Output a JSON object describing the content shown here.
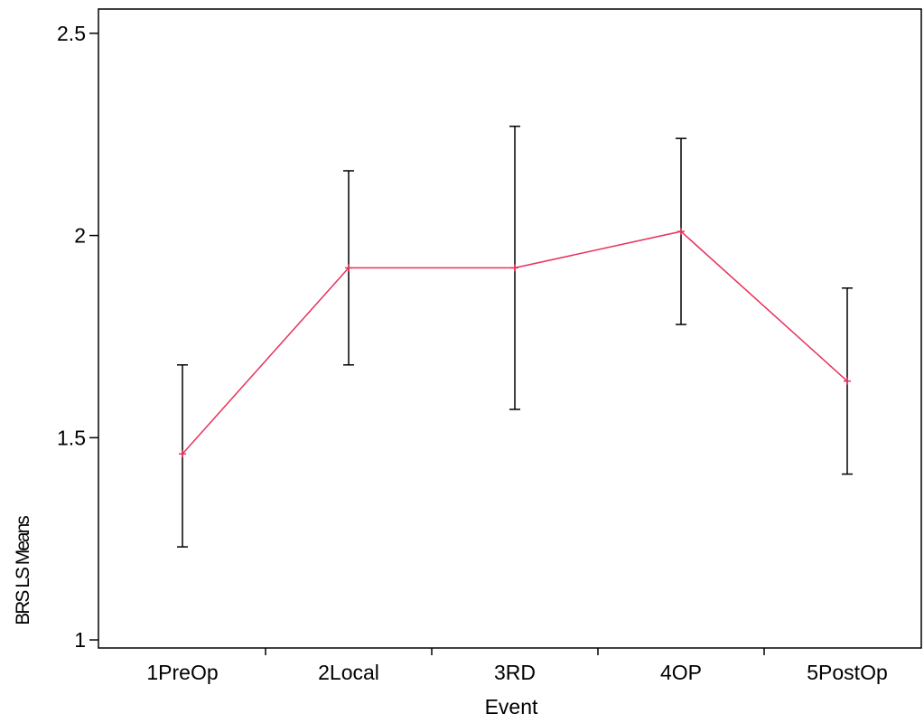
{
  "chart_data": {
    "type": "line",
    "title": "",
    "xlabel": "Event",
    "ylabel": "BRS LS Means",
    "categories": [
      "1PreOp",
      "2Local",
      "3RD",
      "4OP",
      "5PostOp"
    ],
    "series": [
      {
        "values": [
          1.46,
          1.92,
          1.92,
          2.01,
          1.64
        ],
        "lower": [
          1.23,
          1.68,
          1.57,
          1.78,
          1.41
        ],
        "upper": [
          1.68,
          2.16,
          2.27,
          2.24,
          1.87
        ],
        "color": "#e8315a",
        "error_bar_color": "#000000"
      }
    ],
    "ylim": [
      0.98,
      2.56
    ],
    "yticks": [
      1,
      1.5,
      2,
      2.5
    ],
    "ytick_labels": [
      "1",
      "1.5",
      "2",
      "2.5"
    ],
    "grid": false,
    "legend": "none"
  }
}
